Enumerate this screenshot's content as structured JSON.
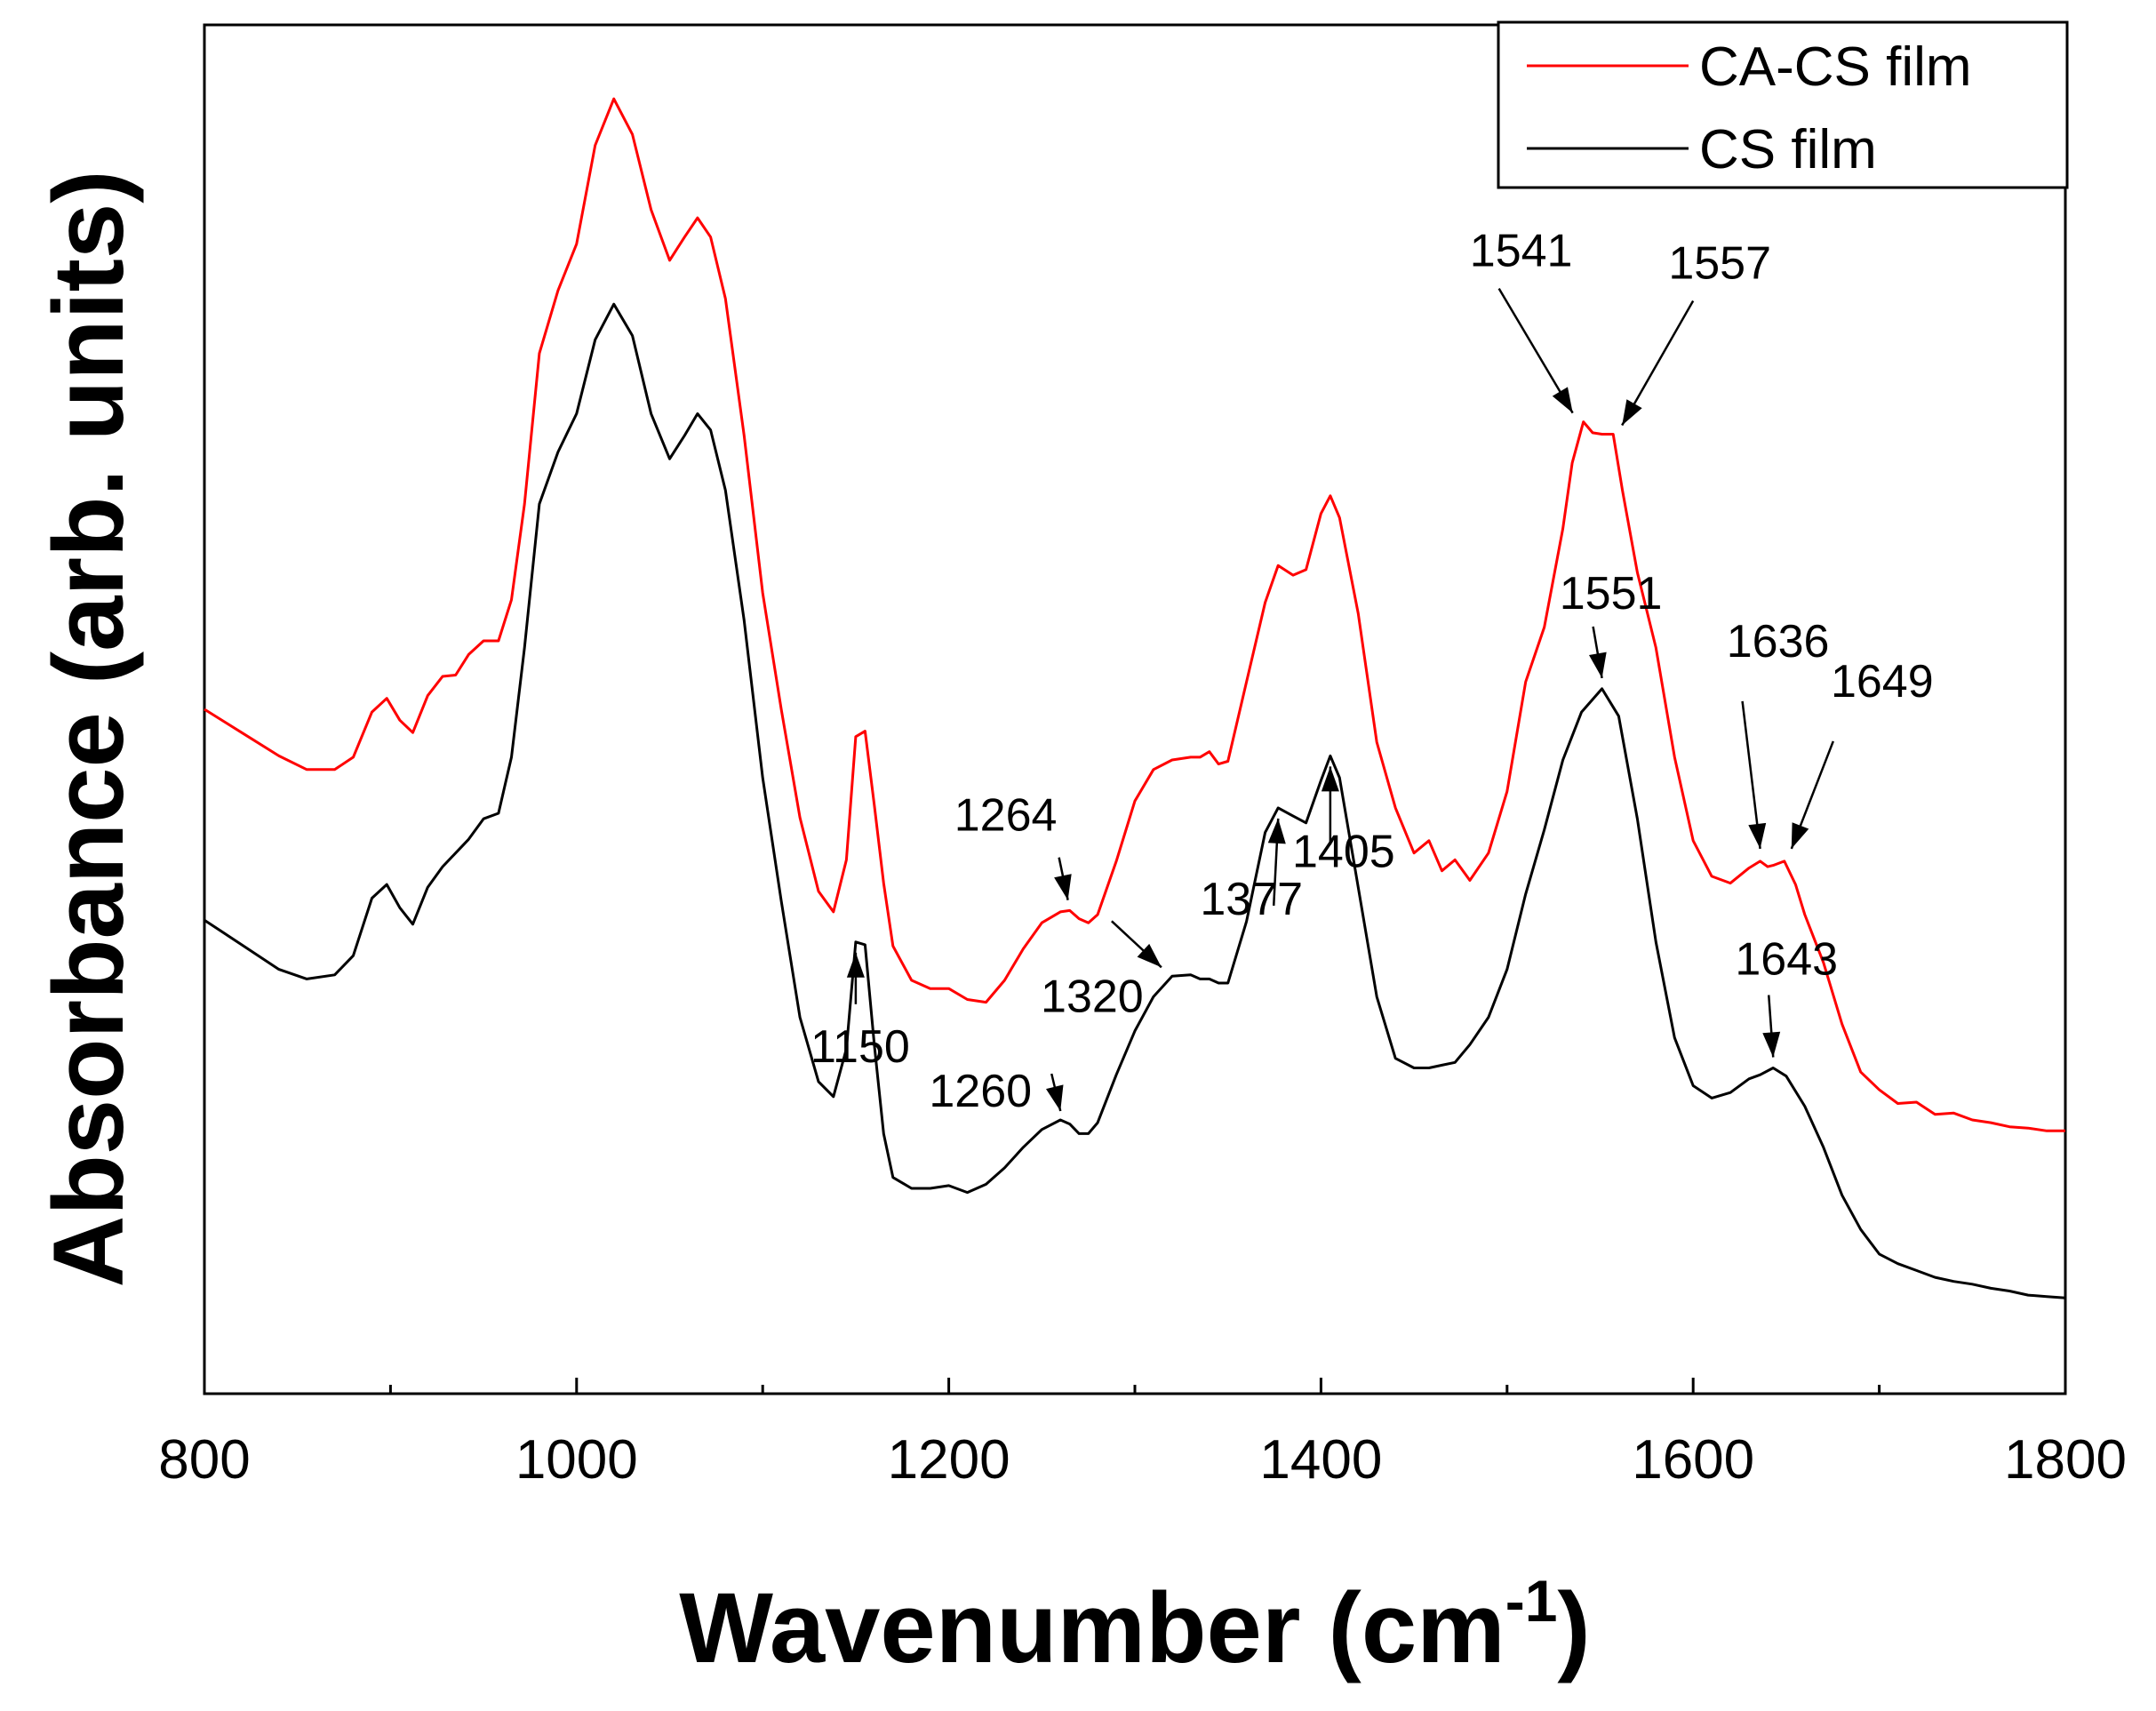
{
  "chart_data": {
    "type": "line",
    "title": "",
    "xlabel_main": "Wavenumber (cm",
    "xlabel_sup": "-1",
    "xlabel_close": ")",
    "ylabel": "Absorbance (arb. units)",
    "xlim": [
      800,
      1800
    ],
    "ylim": [
      0,
      1
    ],
    "xticks": [
      800,
      1000,
      1200,
      1400,
      1600,
      1800
    ],
    "grid": false,
    "legend_position": "top-right",
    "series": [
      {
        "name": "CA-CS film",
        "color": "#ff0000",
        "x": [
          800,
          820,
          840,
          855,
          870,
          880,
          890,
          898,
          905,
          912,
          920,
          928,
          935,
          942,
          950,
          958,
          965,
          972,
          980,
          990,
          1000,
          1010,
          1020,
          1030,
          1040,
          1050,
          1058,
          1065,
          1072,
          1080,
          1090,
          1100,
          1110,
          1120,
          1130,
          1138,
          1145,
          1150,
          1155,
          1160,
          1165,
          1170,
          1180,
          1190,
          1200,
          1210,
          1220,
          1230,
          1240,
          1250,
          1260,
          1265,
          1270,
          1275,
          1280,
          1290,
          1300,
          1310,
          1320,
          1330,
          1335,
          1340,
          1345,
          1350,
          1360,
          1370,
          1377,
          1385,
          1392,
          1400,
          1405,
          1410,
          1420,
          1430,
          1440,
          1450,
          1458,
          1465,
          1472,
          1480,
          1490,
          1500,
          1510,
          1520,
          1530,
          1535,
          1541,
          1546,
          1551,
          1557,
          1562,
          1570,
          1580,
          1590,
          1600,
          1610,
          1620,
          1630,
          1636,
          1640,
          1643,
          1649,
          1655,
          1660,
          1670,
          1680,
          1690,
          1700,
          1710,
          1720,
          1730,
          1740,
          1750,
          1760,
          1770,
          1780,
          1790,
          1800
        ],
        "values": [
          0.5,
          0.483,
          0.466,
          0.456,
          0.456,
          0.465,
          0.498,
          0.508,
          0.492,
          0.483,
          0.51,
          0.524,
          0.525,
          0.54,
          0.55,
          0.55,
          0.58,
          0.65,
          0.76,
          0.806,
          0.84,
          0.912,
          0.946,
          0.92,
          0.865,
          0.828,
          0.845,
          0.859,
          0.845,
          0.8,
          0.7,
          0.585,
          0.5,
          0.421,
          0.367,
          0.352,
          0.39,
          0.48,
          0.484,
          0.43,
          0.373,
          0.327,
          0.302,
          0.296,
          0.296,
          0.288,
          0.286,
          0.302,
          0.325,
          0.344,
          0.352,
          0.353,
          0.347,
          0.344,
          0.35,
          0.389,
          0.433,
          0.456,
          0.463,
          0.465,
          0.465,
          0.469,
          0.46,
          0.462,
          0.52,
          0.578,
          0.605,
          0.598,
          0.602,
          0.643,
          0.656,
          0.64,
          0.57,
          0.476,
          0.428,
          0.395,
          0.404,
          0.382,
          0.39,
          0.375,
          0.395,
          0.44,
          0.52,
          0.56,
          0.632,
          0.68,
          0.71,
          0.702,
          0.701,
          0.701,
          0.66,
          0.6,
          0.545,
          0.465,
          0.404,
          0.378,
          0.373,
          0.384,
          0.389,
          0.385,
          0.386,
          0.389,
          0.372,
          0.35,
          0.315,
          0.27,
          0.235,
          0.222,
          0.212,
          0.213,
          0.204,
          0.205,
          0.2,
          0.198,
          0.195,
          0.194,
          0.192,
          0.192
        ]
      },
      {
        "name": "CS film",
        "color": "#000000",
        "x": [
          800,
          820,
          840,
          855,
          870,
          880,
          890,
          898,
          905,
          912,
          920,
          928,
          935,
          942,
          950,
          958,
          965,
          972,
          980,
          990,
          1000,
          1010,
          1020,
          1030,
          1040,
          1050,
          1058,
          1065,
          1072,
          1080,
          1090,
          1100,
          1110,
          1120,
          1130,
          1138,
          1145,
          1150,
          1155,
          1160,
          1165,
          1170,
          1180,
          1190,
          1200,
          1210,
          1220,
          1230,
          1240,
          1250,
          1260,
          1265,
          1270,
          1275,
          1280,
          1290,
          1300,
          1310,
          1320,
          1330,
          1335,
          1340,
          1345,
          1350,
          1360,
          1370,
          1377,
          1385,
          1392,
          1400,
          1405,
          1410,
          1420,
          1430,
          1440,
          1450,
          1458,
          1465,
          1472,
          1480,
          1490,
          1500,
          1510,
          1520,
          1530,
          1540,
          1551,
          1560,
          1570,
          1580,
          1590,
          1600,
          1610,
          1620,
          1630,
          1636,
          1643,
          1650,
          1660,
          1670,
          1680,
          1690,
          1700,
          1710,
          1720,
          1730,
          1740,
          1750,
          1760,
          1770,
          1780,
          1790,
          1800
        ],
        "values": [
          0.346,
          0.328,
          0.31,
          0.303,
          0.306,
          0.32,
          0.362,
          0.372,
          0.355,
          0.343,
          0.37,
          0.385,
          0.395,
          0.405,
          0.42,
          0.424,
          0.465,
          0.545,
          0.65,
          0.688,
          0.716,
          0.77,
          0.796,
          0.773,
          0.716,
          0.683,
          0.7,
          0.716,
          0.704,
          0.66,
          0.565,
          0.45,
          0.36,
          0.275,
          0.228,
          0.217,
          0.252,
          0.33,
          0.328,
          0.255,
          0.19,
          0.158,
          0.15,
          0.15,
          0.152,
          0.147,
          0.153,
          0.165,
          0.18,
          0.193,
          0.2,
          0.197,
          0.19,
          0.19,
          0.198,
          0.233,
          0.265,
          0.29,
          0.305,
          0.306,
          0.303,
          0.303,
          0.3,
          0.3,
          0.345,
          0.41,
          0.428,
          0.422,
          0.417,
          0.448,
          0.466,
          0.45,
          0.37,
          0.29,
          0.245,
          0.238,
          0.238,
          0.24,
          0.242,
          0.255,
          0.275,
          0.31,
          0.365,
          0.412,
          0.463,
          0.498,
          0.515,
          0.495,
          0.42,
          0.33,
          0.26,
          0.225,
          0.216,
          0.22,
          0.23,
          0.233,
          0.238,
          0.232,
          0.21,
          0.18,
          0.145,
          0.12,
          0.102,
          0.095,
          0.09,
          0.085,
          0.082,
          0.08,
          0.077,
          0.075,
          0.072,
          0.071,
          0.07
        ]
      }
    ],
    "annotations": [
      {
        "text": "1541",
        "x": 1541,
        "series": 0
      },
      {
        "text": "1557",
        "x": 1557,
        "series": 0
      },
      {
        "text": "1264",
        "x": 1264,
        "series": 0
      },
      {
        "text": "1636",
        "x": 1636,
        "series": 0
      },
      {
        "text": "1649",
        "x": 1649,
        "series": 0
      },
      {
        "text": "1551",
        "x": 1551,
        "series": 1
      },
      {
        "text": "1320",
        "x": 1320,
        "series": 1
      },
      {
        "text": "1260",
        "x": 1260,
        "series": 1
      },
      {
        "text": "1150",
        "x": 1150,
        "series": 1
      },
      {
        "text": "1377",
        "x": 1377,
        "series": 1
      },
      {
        "text": "1405",
        "x": 1405,
        "series": 1
      },
      {
        "text": "1643",
        "x": 1643,
        "series": 1
      }
    ]
  }
}
